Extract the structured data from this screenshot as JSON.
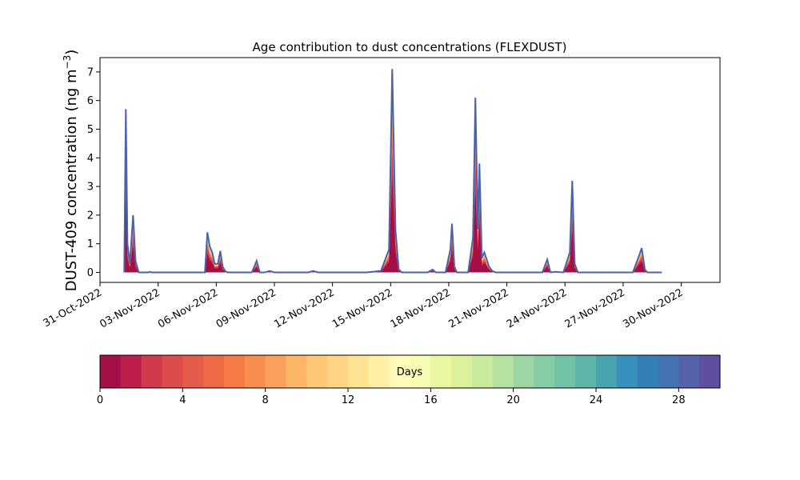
{
  "chart_data": {
    "type": "area",
    "title": "Age contribution to dust concentrations (FLEXDUST)",
    "ylabel": "DUST-409 concentration (ng m",
    "ylabel_superscript": "−3",
    "ylabel_close": ")",
    "xlabel": "",
    "x_range": [
      "2022-10-31",
      "2022-12-02"
    ],
    "ylim": [
      -0.35,
      7.5
    ],
    "y_ticks": [
      0,
      1,
      2,
      3,
      4,
      5,
      6,
      7
    ],
    "x_ticks": [
      {
        "date": "2022-10-31",
        "label": "31-Oct-2022"
      },
      {
        "date": "2022-11-03",
        "label": "03-Nov-2022"
      },
      {
        "date": "2022-11-06",
        "label": "06-Nov-2022"
      },
      {
        "date": "2022-11-09",
        "label": "09-Nov-2022"
      },
      {
        "date": "2022-11-12",
        "label": "12-Nov-2022"
      },
      {
        "date": "2022-11-15",
        "label": "15-Nov-2022"
      },
      {
        "date": "2022-11-18",
        "label": "18-Nov-2022"
      },
      {
        "date": "2022-11-21",
        "label": "21-Nov-2022"
      },
      {
        "date": "2022-11-24",
        "label": "24-Nov-2022"
      },
      {
        "date": "2022-11-27",
        "label": "27-Nov-2022"
      },
      {
        "date": "2022-11-30",
        "label": "30-Nov-2022"
      }
    ],
    "series_total": [
      [
        "2022-11-01 06:00",
        0
      ],
      [
        "2022-11-01 08:00",
        5.7
      ],
      [
        "2022-11-01 10:00",
        1.0
      ],
      [
        "2022-11-01 13:00",
        0.3
      ],
      [
        "2022-11-01 17:00",
        2.0
      ],
      [
        "2022-11-01 20:00",
        0.4
      ],
      [
        "2022-11-02 00:00",
        0
      ],
      [
        "2022-11-02 12:00",
        0
      ],
      [
        "2022-11-02 14:00",
        0.02
      ],
      [
        "2022-11-02 16:00",
        0
      ],
      [
        "2022-11-05 10:00",
        0
      ],
      [
        "2022-11-05 13:00",
        1.4
      ],
      [
        "2022-11-05 16:00",
        0.9
      ],
      [
        "2022-11-05 19:00",
        0.7
      ],
      [
        "2022-11-05 22:00",
        0.3
      ],
      [
        "2022-11-06 02:00",
        0.3
      ],
      [
        "2022-11-06 05:00",
        0.75
      ],
      [
        "2022-11-06 08:00",
        0.2
      ],
      [
        "2022-11-06 11:00",
        0.05
      ],
      [
        "2022-11-06 14:00",
        0
      ],
      [
        "2022-11-07 20:00",
        0
      ],
      [
        "2022-11-08 02:00",
        0.4
      ],
      [
        "2022-11-08 06:00",
        0
      ],
      [
        "2022-11-08 12:00",
        0
      ],
      [
        "2022-11-08 18:00",
        0.05
      ],
      [
        "2022-11-09 00:00",
        0
      ],
      [
        "2022-11-10 18:00",
        0
      ],
      [
        "2022-11-11 00:00",
        0.05
      ],
      [
        "2022-11-11 06:00",
        0
      ],
      [
        "2022-11-13 18:00",
        0
      ],
      [
        "2022-11-14 12:00",
        0.05
      ],
      [
        "2022-11-14 22:00",
        0.8
      ],
      [
        "2022-11-15 02:00",
        7.1
      ],
      [
        "2022-11-15 06:00",
        1.5
      ],
      [
        "2022-11-15 10:00",
        0.1
      ],
      [
        "2022-11-15 14:00",
        0
      ],
      [
        "2022-11-16 22:00",
        0
      ],
      [
        "2022-11-17 04:00",
        0.1
      ],
      [
        "2022-11-17 08:00",
        0
      ],
      [
        "2022-11-17 20:00",
        0
      ],
      [
        "2022-11-18 02:00",
        0.8
      ],
      [
        "2022-11-18 04:00",
        1.7
      ],
      [
        "2022-11-18 07:00",
        0.2
      ],
      [
        "2022-11-18 10:00",
        0
      ],
      [
        "2022-11-19 00:00",
        0
      ],
      [
        "2022-11-19 06:00",
        1.2
      ],
      [
        "2022-11-19 09:00",
        6.1
      ],
      [
        "2022-11-19 12:00",
        1.5
      ],
      [
        "2022-11-19 14:00",
        3.8
      ],
      [
        "2022-11-19 17:00",
        0.5
      ],
      [
        "2022-11-19 20:00",
        0.7
      ],
      [
        "2022-11-20 02:00",
        0.2
      ],
      [
        "2022-11-20 06:00",
        0.05
      ],
      [
        "2022-11-20 10:00",
        0
      ],
      [
        "2022-11-22 20:00",
        0
      ],
      [
        "2022-11-23 02:00",
        0.45
      ],
      [
        "2022-11-23 06:00",
        0
      ],
      [
        "2022-11-23 12:00",
        0.02
      ],
      [
        "2022-11-23 22:00",
        0
      ],
      [
        "2022-11-24 06:00",
        0.7
      ],
      [
        "2022-11-24 09:00",
        3.2
      ],
      [
        "2022-11-24 12:00",
        0.3
      ],
      [
        "2022-11-24 16:00",
        0
      ],
      [
        "2022-11-27 12:00",
        0
      ],
      [
        "2022-11-27 20:00",
        0.6
      ],
      [
        "2022-11-27 23:00",
        0.85
      ],
      [
        "2022-11-28 03:00",
        0.1
      ],
      [
        "2022-11-28 06:00",
        0
      ],
      [
        "2022-11-29 00:00",
        0
      ]
    ],
    "x_end": "2022-11-29 00:00",
    "colorbar": {
      "label": "Days",
      "min": 0,
      "max": 30,
      "ticks": [
        0,
        4,
        8,
        12,
        16,
        20,
        24,
        28
      ],
      "colors": [
        "#a50f45",
        "#bd1f4a",
        "#d13a4c",
        "#de4b4b",
        "#e55a4b",
        "#ed6a45",
        "#f57a46",
        "#f88d52",
        "#fba05c",
        "#fdb567",
        "#fec776",
        "#fed584",
        "#fee392",
        "#fff0a6",
        "#fffbb8",
        "#f8fcb3",
        "#eaf7a1",
        "#dcf19c",
        "#c9e99d",
        "#b5e1a1",
        "#9dd6a3",
        "#86cca5",
        "#72c2a5",
        "#5eb4a9",
        "#4aa4b0",
        "#3891bd",
        "#3380b9",
        "#4572b3",
        "#5663ac",
        "#5e4fa2"
      ]
    },
    "layer_colors": [
      "#a50f45",
      "#d13a4c",
      "#ed6a45",
      "#f88d52",
      "#fdb567",
      "#fee392",
      "#b5e1a1",
      "#4aa4b0",
      "#4572b3"
    ]
  }
}
